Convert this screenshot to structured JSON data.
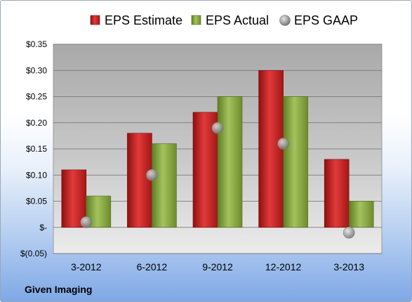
{
  "source": "Given Imaging",
  "colors": {
    "estimate": "#d42a2a",
    "actual": "#8fb04a",
    "gaap": "#a8a8a8"
  },
  "chart_data": {
    "type": "bar",
    "categories": [
      "3-2012",
      "6-2012",
      "9-2012",
      "12-2012",
      "3-2013"
    ],
    "series": [
      {
        "name": "EPS Estimate",
        "kind": "bar",
        "values": [
          0.11,
          0.18,
          0.22,
          0.3,
          0.13
        ]
      },
      {
        "name": "EPS Actual",
        "kind": "bar",
        "values": [
          0.06,
          0.16,
          0.25,
          0.25,
          0.05
        ]
      },
      {
        "name": "EPS GAAP",
        "kind": "marker",
        "values": [
          0.01,
          0.1,
          0.19,
          0.16,
          -0.01
        ]
      }
    ],
    "y_ticks": [
      {
        "value": 0.35,
        "label": "$0.35"
      },
      {
        "value": 0.3,
        "label": "$0.30"
      },
      {
        "value": 0.25,
        "label": "$0.25"
      },
      {
        "value": 0.2,
        "label": "$0.20"
      },
      {
        "value": 0.15,
        "label": "$0.15"
      },
      {
        "value": 0.1,
        "label": "$0.10"
      },
      {
        "value": 0.05,
        "label": "$0.05"
      },
      {
        "value": 0.0,
        "label": "$-"
      },
      {
        "value": -0.05,
        "label": "$(0.05)"
      }
    ],
    "ylim": [
      -0.05,
      0.35
    ],
    "grid": true,
    "legend_position": "top"
  }
}
